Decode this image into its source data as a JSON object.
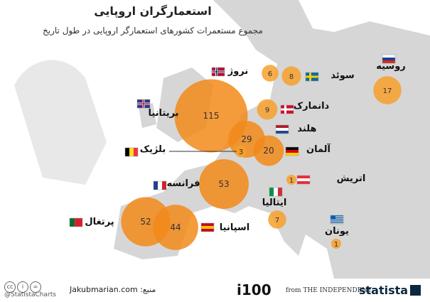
{
  "title": "استعمارگران اروپایی",
  "subtitle": "مجموع مستعمرات کشورهای استعمارگر اروپایی در طول تاریخ",
  "footer": {
    "handle": "@StatistaCharts",
    "source": "منبع: Jakubmarian.com",
    "i100": "i100",
    "independent": "from THE INDEPENDENT",
    "statista": "statista"
  },
  "colors": {
    "bubble": "#f7a02a",
    "bubble_dark": "#f28a1a",
    "land": "#d6d6d6",
    "sea": "#ffffff"
  },
  "chart_data": {
    "type": "bubble-map",
    "title": "استعمارگران اروپایی",
    "subtitle": "مجموع مستعمرات کشورهای استعمارگر اروپایی در طول تاریخ",
    "series": [
      {
        "country": "بریتانیا",
        "flag": "gb",
        "value": 115
      },
      {
        "country": "فرانسه",
        "flag": "fr",
        "value": 53
      },
      {
        "country": "پرتغال",
        "flag": "pt",
        "value": 52
      },
      {
        "country": "اسپانیا",
        "flag": "es",
        "value": 44
      },
      {
        "country": "هلند",
        "flag": "nl",
        "value": 29
      },
      {
        "country": "آلمان",
        "flag": "de",
        "value": 20
      },
      {
        "country": "روسیه",
        "flag": "ru",
        "value": 17
      },
      {
        "country": "دانمارک",
        "flag": "dk",
        "value": 9
      },
      {
        "country": "سوئد",
        "flag": "se",
        "value": 8
      },
      {
        "country": "ایتالیا",
        "flag": "it",
        "value": 7
      },
      {
        "country": "نروژ",
        "flag": "no",
        "value": 6
      },
      {
        "country": "بلژیک",
        "flag": "be",
        "value": 3
      },
      {
        "country": "اتریش",
        "flag": "at",
        "value": 1
      },
      {
        "country": "یونان",
        "flag": "gr",
        "value": 1
      }
    ]
  }
}
